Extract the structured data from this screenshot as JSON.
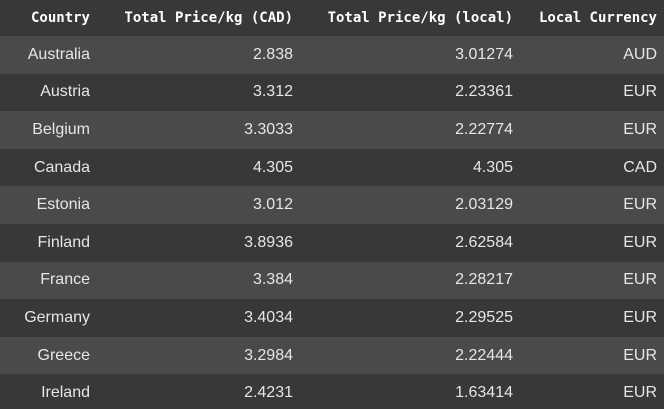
{
  "columns": [
    "Country",
    "Total Price/kg (CAD)",
    "Total Price/kg (local)",
    "Local Currency"
  ],
  "rows": [
    [
      "Australia",
      "2.838",
      "3.01274",
      "AUD"
    ],
    [
      "Austria",
      "3.312",
      "2.23361",
      "EUR"
    ],
    [
      "Belgium",
      "3.3033",
      "2.22774",
      "EUR"
    ],
    [
      "Canada",
      "4.305",
      "4.305",
      "CAD"
    ],
    [
      "Estonia",
      "3.012",
      "2.03129",
      "EUR"
    ],
    [
      "Finland",
      "3.8936",
      "2.62584",
      "EUR"
    ],
    [
      "France",
      "3.384",
      "2.28217",
      "EUR"
    ],
    [
      "Germany",
      "3.4034",
      "2.29525",
      "EUR"
    ],
    [
      "Greece",
      "3.2984",
      "2.22444",
      "EUR"
    ],
    [
      "Ireland",
      "2.4231",
      "1.63414",
      "EUR"
    ]
  ],
  "colors": {
    "row_odd": "#4a4a4a",
    "row_even": "#383838",
    "header_text": "#ffffff",
    "cell_text": "#e6e6e6"
  }
}
